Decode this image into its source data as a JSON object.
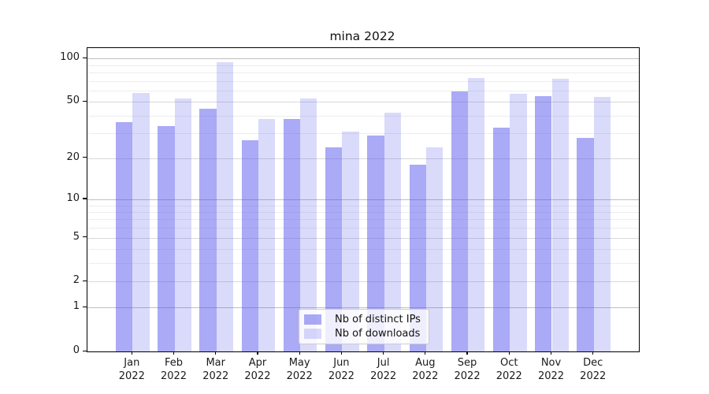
{
  "figure": {
    "title": "mina 2022"
  },
  "chart_data": {
    "type": "bar",
    "title": "mina 2022",
    "categories": [
      "Jan 2022",
      "Feb 2022",
      "Mar 2022",
      "Apr 2022",
      "May 2022",
      "Jun 2022",
      "Jul 2022",
      "Aug 2022",
      "Sep 2022",
      "Oct 2022",
      "Nov 2022",
      "Dec 2022"
    ],
    "series": [
      {
        "name": "Nb of distinct IPs",
        "color": "rgba(85,85,238,0.50)",
        "values": [
          36,
          34,
          45,
          27,
          38,
          24,
          29,
          18,
          59,
          33,
          55,
          28
        ]
      },
      {
        "name": "Nb of downloads",
        "color": "rgba(85,85,238,0.22)",
        "values": [
          58,
          53,
          94,
          38,
          53,
          31,
          42,
          24,
          73,
          57,
          72,
          54
        ]
      }
    ],
    "xlabel": "",
    "ylabel": "",
    "yscale": "log1p",
    "ylim": [
      0,
      118
    ],
    "yticks_labeled": [
      0,
      1,
      2,
      5,
      10,
      20,
      50,
      100
    ],
    "yticks_power10": [
      1,
      10,
      100
    ],
    "yticks_minor": [
      3,
      4,
      6,
      7,
      8,
      9,
      30,
      40,
      60,
      70,
      80,
      90
    ],
    "grid": true,
    "legend_position": "lower center",
    "accent_color": "#5555ee"
  }
}
